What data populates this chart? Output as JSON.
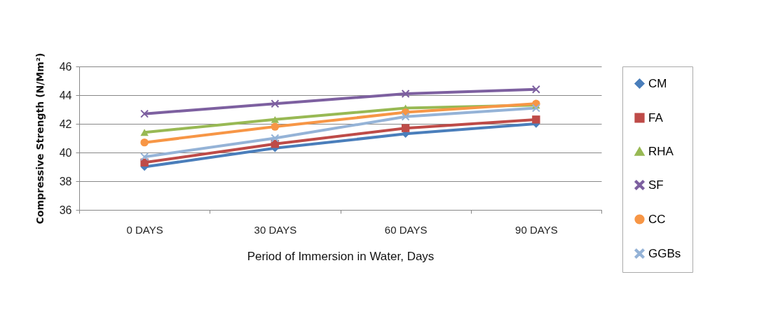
{
  "chart_data": {
    "type": "line",
    "xlabel": "Period of Immersion  in Water, Days",
    "ylabel": "Compressive Strength (N/Mm²)",
    "categories": [
      "0 DAYS",
      "30 DAYS",
      "60 DAYS",
      "90 DAYS"
    ],
    "series": [
      {
        "name": "CM",
        "color": "#4a7ebb",
        "marker": "diamond",
        "values": [
          39.0,
          40.3,
          41.3,
          42.0
        ]
      },
      {
        "name": "FA",
        "color": "#be4b48",
        "marker": "square",
        "values": [
          39.3,
          40.6,
          41.7,
          42.3
        ]
      },
      {
        "name": "RHA",
        "color": "#98b954",
        "marker": "triangle",
        "values": [
          41.4,
          42.3,
          43.1,
          43.3
        ]
      },
      {
        "name": "SF",
        "color": "#7d60a0",
        "marker": "cross",
        "values": [
          42.7,
          43.4,
          44.1,
          44.4
        ]
      },
      {
        "name": "CC",
        "color": "#f79646",
        "marker": "circle",
        "values": [
          40.7,
          41.8,
          42.8,
          43.4
        ]
      },
      {
        "name": "GGBs",
        "color": "#95b3d7",
        "marker": "cross",
        "values": [
          39.7,
          41.0,
          42.5,
          43.1
        ]
      }
    ],
    "ylim": [
      36,
      46
    ],
    "yticks": [
      36,
      38,
      40,
      42,
      44,
      46
    ],
    "grid": "y",
    "legend": "right"
  }
}
